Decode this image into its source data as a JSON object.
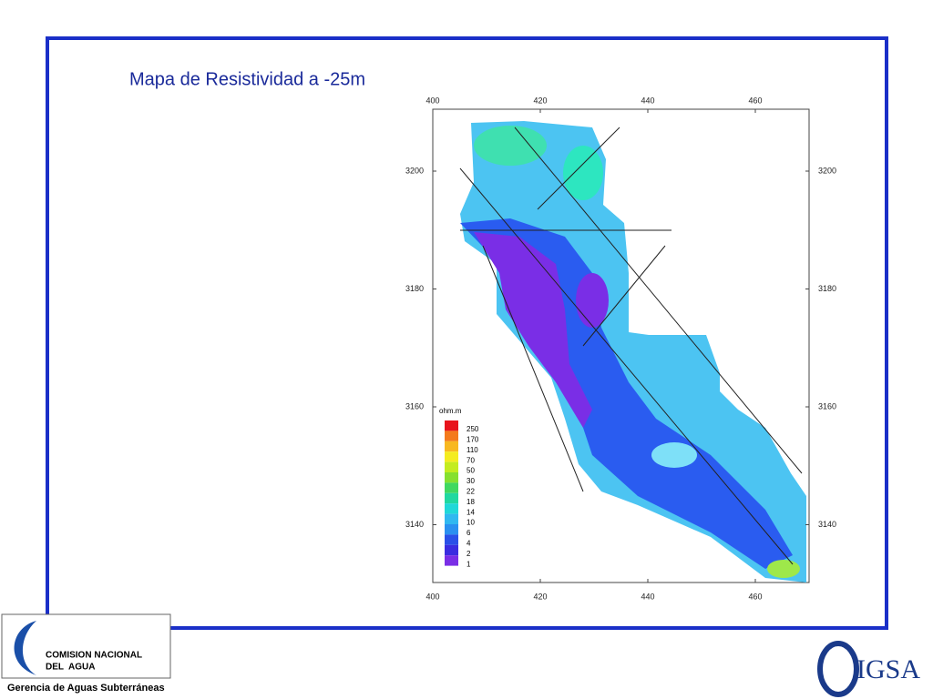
{
  "title": "Mapa de Resistividad a -25m",
  "map": {
    "x_ticks": [
      400,
      420,
      440,
      460
    ],
    "y_ticks": [
      3200,
      3180,
      3160,
      3140
    ]
  },
  "legend": {
    "unit": "ohm.m",
    "levels": [
      250,
      170,
      110,
      70,
      50,
      30,
      22,
      18,
      14,
      10,
      6,
      4,
      2,
      1
    ]
  },
  "footer": {
    "org_line1": "COMISION NACIONAL",
    "org_line2": "DEL  AGUA",
    "department": "Gerencia de Aguas Subterráneas",
    "right_logo": "IGSA"
  }
}
